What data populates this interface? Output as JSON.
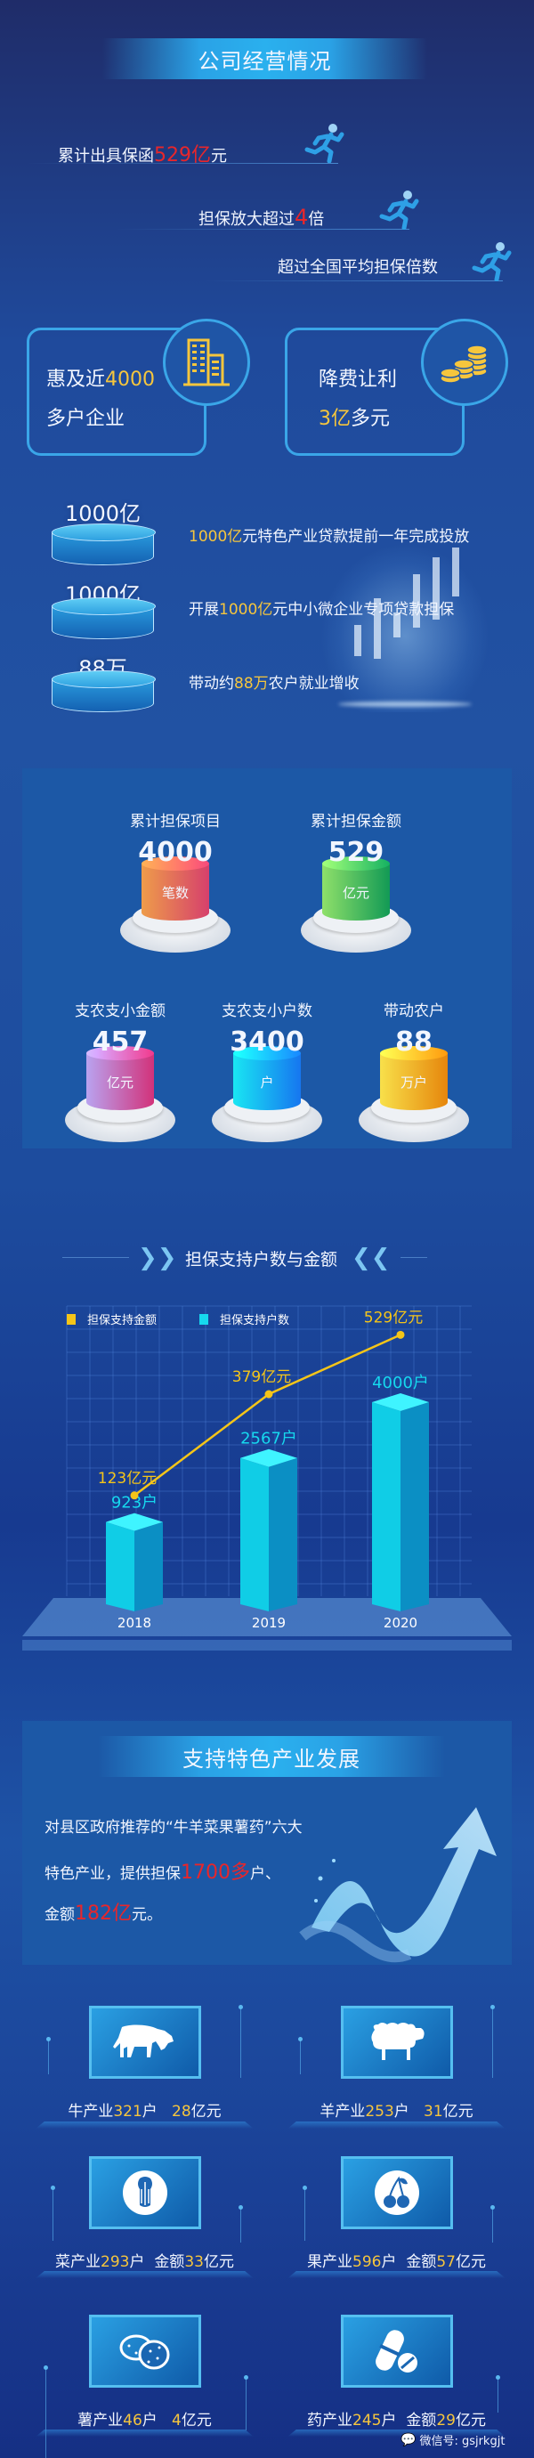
{
  "section1": {
    "title": "公司经营情况",
    "runs": [
      {
        "pre": "累计出具保函",
        "hl": "529亿",
        "post": "元"
      },
      {
        "pre": "担保放大超过",
        "hl": "4",
        "post": "倍"
      },
      {
        "pre": "超过全国平均担保倍数"
      }
    ]
  },
  "cards": [
    {
      "line1_pre": "惠及近",
      "line1_hl": "4000",
      "line2": "多户企业",
      "icon": "building-icon"
    },
    {
      "line1": "降费让利",
      "line2_hl": "3亿",
      "line2_post": "多元",
      "icon": "coins-icon"
    }
  ],
  "disks": [
    {
      "label": "1000亿",
      "pre": "",
      "hl": "1000亿",
      "post": "元特色产业贷款提前一年完成投放"
    },
    {
      "label": "1000亿",
      "pre": "开展",
      "hl": "1000亿",
      "post": "元中小微企业专项贷款担保"
    },
    {
      "label": "88万",
      "pre": "带动约",
      "hl": "88万",
      "post": "农户就业增收"
    }
  ],
  "stats": [
    {
      "label": "累计担保项目",
      "value": "4000",
      "unit": "笔数"
    },
    {
      "label": "累计担保金额",
      "value": "529",
      "unit": "亿元"
    },
    {
      "label": "支农支小金额",
      "value": "457",
      "unit": "亿元"
    },
    {
      "label": "支农支小户数",
      "value": "3400",
      "unit": "户"
    },
    {
      "label": "带动农户",
      "value": "88",
      "unit": "万户"
    }
  ],
  "chart_header": "担保支持户数与金额",
  "chart_data": {
    "type": "bar+line",
    "categories": [
      "2018",
      "2019",
      "2020"
    ],
    "series": [
      {
        "name": "担保支持金额",
        "type": "line",
        "color": "#f5c518",
        "values": [
          123,
          379,
          529
        ],
        "labels": [
          "123亿元",
          "379亿元",
          "529亿元"
        ]
      },
      {
        "name": "担保支持户数",
        "type": "bar",
        "color": "#16d8ee",
        "values": [
          923,
          2567,
          4000
        ],
        "labels": [
          "923户",
          "2567户",
          "4000户"
        ]
      }
    ],
    "legend": "top-left",
    "grid": true
  },
  "section3": {
    "title": "支持特色产业发展",
    "line1": "对县区政府推荐的“牛羊菜果薯药”六大",
    "line2_pre": "特色产业，提供担保",
    "line2_hl": "1700多",
    "line2_post": "户、",
    "line3_pre": "金额",
    "line3_hl": "182亿",
    "line3_post": "元。"
  },
  "industries": [
    {
      "name": "牛产业",
      "households": "321",
      "hu": "户",
      "amount_prefix": "",
      "amount": "28",
      "unit": "亿元",
      "icon": "cow-icon"
    },
    {
      "name": "羊产业",
      "households": "253",
      "hu": "户",
      "amount_prefix": "",
      "amount": "31",
      "unit": "亿元",
      "icon": "sheep-icon"
    },
    {
      "name": "菜产业",
      "households": "293",
      "hu": "户",
      "amount_prefix": "金额",
      "amount": "33",
      "unit": "亿元",
      "icon": "cabbage-icon"
    },
    {
      "name": "果产业",
      "households": "596",
      "hu": "户",
      "amount_prefix": "金额",
      "amount": "57",
      "unit": "亿元",
      "icon": "cherry-icon"
    },
    {
      "name": "薯产业",
      "households": "46",
      "hu": "户",
      "amount_prefix": "",
      "amount": "4",
      "unit": "亿元",
      "icon": "potato-icon"
    },
    {
      "name": "药产业",
      "households": "245",
      "hu": "户",
      "amount_prefix": "金额",
      "amount": "29",
      "unit": "亿元",
      "icon": "pill-icon"
    }
  ],
  "watermark": "微信号: gsjrkgjt",
  "colors": {
    "highlight_yellow": "#f6c63d",
    "highlight_red": "#e8262b",
    "accent_blue": "#3aa6e8"
  }
}
